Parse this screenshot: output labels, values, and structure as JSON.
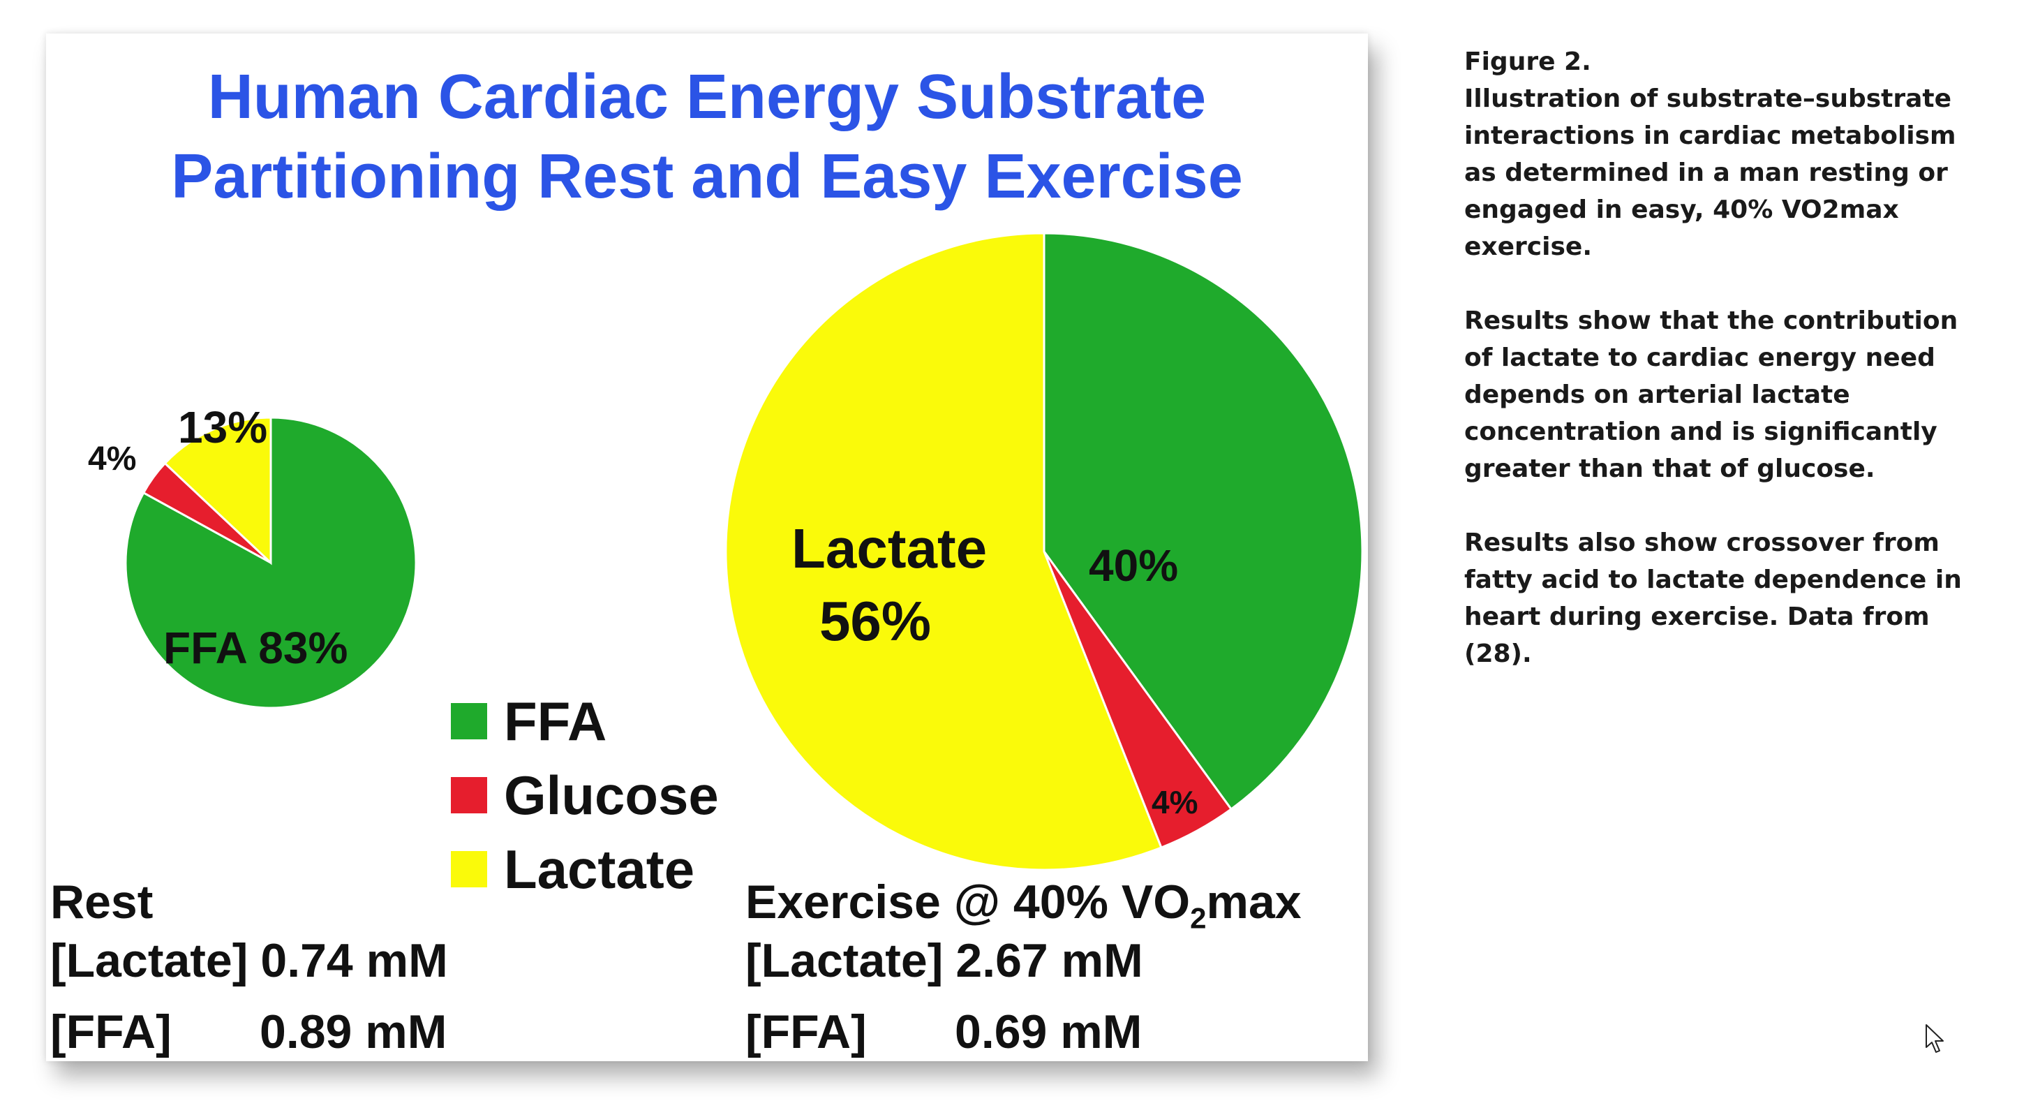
{
  "slide": {
    "title_line1": "Human Cardiac Energy Substrate",
    "title_line2": "Partitioning Rest and Easy Exercise",
    "title_color": "#2b54e6"
  },
  "chart_data": [
    {
      "type": "pie",
      "title": "Rest",
      "slices": [
        {
          "label": "FFA",
          "value": 83,
          "color": "#1faa2c",
          "display": "FFA 83%"
        },
        {
          "label": "Glucose",
          "value": 4,
          "color": "#e61e2d",
          "display": "4%"
        },
        {
          "label": "Lactate",
          "value": 13,
          "color": "#fafa0a",
          "display": "13%"
        }
      ],
      "conditions": {
        "lactate": "0.74 mM",
        "ffa": "0.89 mM"
      }
    },
    {
      "type": "pie",
      "title": "Exercise @ 40% VO2max",
      "slices": [
        {
          "label": "FFA",
          "value": 40,
          "color": "#1faa2c",
          "display": "40%"
        },
        {
          "label": "Glucose",
          "value": 4,
          "color": "#e61e2d",
          "display": "4%"
        },
        {
          "label": "Lactate",
          "value": 56,
          "color": "#fafa0a",
          "display": "Lactate 56%"
        }
      ],
      "conditions": {
        "lactate": "2.67 mM",
        "ffa": "0.69 mM"
      }
    }
  ],
  "legend": [
    {
      "label": "FFA",
      "color": "#1faa2c"
    },
    {
      "label": "Glucose",
      "color": "#e61e2d"
    },
    {
      "label": "Lactate",
      "color": "#fafa0a"
    }
  ],
  "labels": {
    "rest_ffa": "FFA 83%",
    "rest_glucose": "4%",
    "rest_lactate": "13%",
    "ex_ffa": "40%",
    "ex_glucose": "4%",
    "ex_lactate_name": "Lactate",
    "ex_lactate_pct": "56%"
  },
  "rest_block": {
    "heading": "Rest",
    "lactate_key": "[Lactate]",
    "lactate_val": "0.74 mM",
    "ffa_key": "[FFA]",
    "ffa_val": "0.89 mM"
  },
  "exercise_block": {
    "heading_prefix": "Exercise @ 40% VO",
    "heading_sub": "2",
    "heading_suffix": "max",
    "lactate_key": "[Lactate]",
    "lactate_val": "2.67 mM",
    "ffa_key": "[FFA]",
    "ffa_val": "0.69 mM"
  },
  "caption": {
    "figure_label": "Figure 2.",
    "paragraph1": "Illustration of substrate–substrate interactions in cardiac metabolism as determined in a man resting or engaged in easy, 40% VO2max exercise.",
    "paragraph2": "Results show that the contribution of lactate to cardiac energy need depends on arterial lactate concentration and is significantly greater than that of glucose.",
    "paragraph3": "Results also show crossover from fatty acid to lactate dependence in heart during exercise. Data from (28)."
  },
  "cursor": {
    "icon": "mouse-pointer-icon"
  }
}
